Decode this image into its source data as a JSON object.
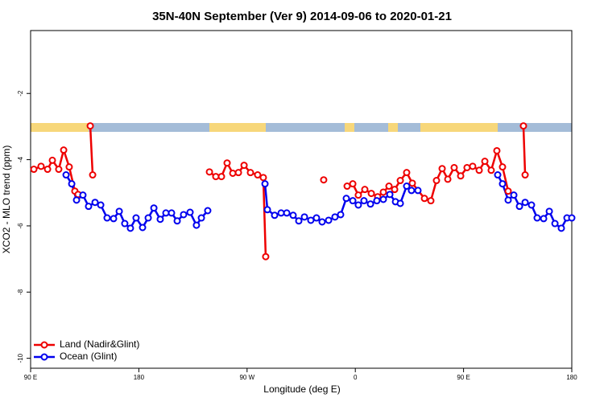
{
  "chart_data": {
    "type": "line",
    "title": "35N-40N September (Ver 9)   2014-09-06 to 2020-01-21",
    "x_label": "Longitude (deg E)",
    "y_label": "XCO2 - MLO trend (ppm)",
    "xlim": [
      90,
      540
    ],
    "xticks": [
      {
        "value": 90,
        "label": "90 E"
      },
      {
        "value": 180,
        "label": "180"
      },
      {
        "value": 270,
        "label": "90 W"
      },
      {
        "value": 360,
        "label": "0"
      },
      {
        "value": 450,
        "label": "90 E"
      },
      {
        "value": 540,
        "label": "180"
      }
    ],
    "ylim": [
      -10.3,
      -0.1
    ],
    "yticks": [
      -10,
      -8,
      -6,
      -4,
      -2
    ],
    "legend": "bottomleft",
    "series": [
      {
        "name": "Land (Nadir&Glint)",
        "color": "#ee0000",
        "x": [
          92.7,
          98.7,
          104.1,
          108.1,
          113.4,
          117.5,
          122.1,
          126.8,
          129.5,
          null,
          139.6,
          141.6,
          null,
          238.7,
          244.0,
          248.7,
          253.4,
          258.1,
          262.8,
          267.5,
          272.8,
          278.8,
          283.5,
          285.5,
          null,
          333.7,
          null,
          353.2,
          357.9,
          362.5,
          367.9,
          373.3,
          378.6,
          383.3,
          388.0,
          392.7,
          397.4,
          402.7,
          407.4,
          417.5,
          422.8,
          427.5,
          432.2,
          436.9,
          442.2,
          447.6,
          452.9,
          457.6,
          463.0,
          467.7,
          473.0,
          477.7,
          482.4,
          487.1,
          null,
          499.8,
          501.2
        ],
        "values": [
          -4.29,
          -4.2,
          -4.29,
          -4.02,
          -4.29,
          -3.71,
          -4.22,
          -4.95,
          -5.05,
          null,
          -2.98,
          -4.46,
          null,
          -4.37,
          -4.51,
          -4.51,
          -4.1,
          -4.41,
          -4.39,
          -4.17,
          -4.39,
          -4.46,
          -4.54,
          -6.93,
          null,
          -4.61,
          null,
          -4.8,
          -4.73,
          -5.07,
          -4.9,
          -5.02,
          -5.12,
          -4.98,
          -4.8,
          -4.9,
          -4.63,
          -4.39,
          -4.71,
          -5.17,
          -5.24,
          -4.63,
          -4.27,
          -4.59,
          -4.24,
          -4.49,
          -4.24,
          -4.2,
          -4.32,
          -4.05,
          -4.32,
          -3.73,
          -4.22,
          -4.95,
          null,
          -2.98,
          -4.46
        ]
      },
      {
        "name": "Ocean (Glint)",
        "color": "#0000ee",
        "x": [
          119.5,
          124.2,
          128.2,
          133.5,
          138.2,
          143.6,
          148.3,
          153.6,
          159.0,
          163.7,
          168.3,
          173.0,
          177.7,
          183.1,
          187.8,
          192.5,
          197.8,
          202.5,
          207.2,
          211.9,
          217.2,
          222.6,
          227.9,
          232.0,
          237.3,
          null,
          284.9,
          286.9,
          292.9,
          298.3,
          303.0,
          308.3,
          313.0,
          317.7,
          323.0,
          327.7,
          332.4,
          337.8,
          343.1,
          347.8,
          352.5,
          357.9,
          362.5,
          367.2,
          372.6,
          377.9,
          383.3,
          388.7,
          393.4,
          397.4,
          402.7,
          406.7,
          412.1,
          null,
          478.4,
          482.4,
          487.1,
          491.8,
          496.5,
          501.2,
          506.5,
          511.2,
          516.6,
          521.3,
          526.0,
          531.3,
          536.0,
          540.0
        ],
        "values": [
          -4.46,
          -4.73,
          -5.22,
          -5.07,
          -5.41,
          -5.29,
          -5.37,
          -5.76,
          -5.78,
          -5.56,
          -5.93,
          -6.07,
          -5.76,
          -6.05,
          -5.76,
          -5.46,
          -5.8,
          -5.61,
          -5.61,
          -5.85,
          -5.66,
          -5.59,
          -5.98,
          -5.76,
          -5.54,
          null,
          -4.73,
          -5.51,
          -5.68,
          -5.61,
          -5.61,
          -5.68,
          -5.85,
          -5.73,
          -5.83,
          -5.76,
          -5.88,
          -5.83,
          -5.73,
          -5.66,
          -5.17,
          -5.24,
          -5.37,
          -5.24,
          -5.34,
          -5.24,
          -5.2,
          -5.05,
          -5.27,
          -5.32,
          -4.8,
          -4.93,
          -4.93,
          null,
          -4.46,
          -4.73,
          -5.22,
          -5.07,
          -5.41,
          -5.29,
          -5.37,
          -5.76,
          -5.78,
          -5.56,
          -5.93,
          -6.07,
          -5.76,
          -5.76
        ]
      }
    ]
  }
}
